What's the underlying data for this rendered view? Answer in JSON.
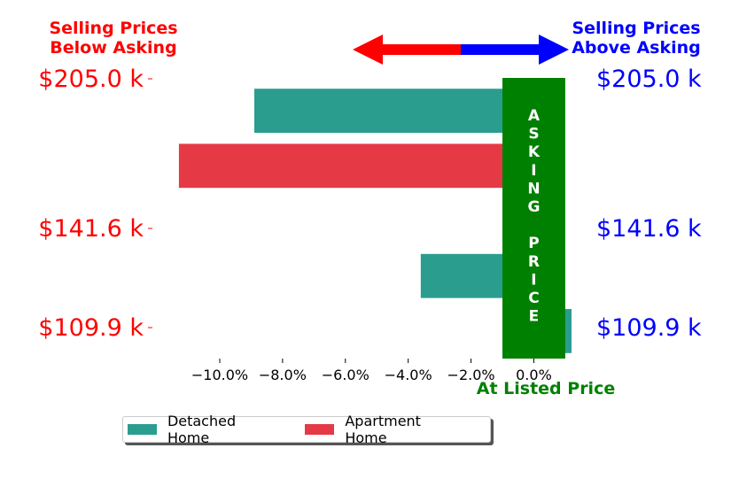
{
  "chart_data": {
    "type": "bar",
    "orientation": "horizontal",
    "series": [
      {
        "name": "Detached Home",
        "color": "#2a9d8f"
      },
      {
        "name": "Apartment Home",
        "color": "#e63946"
      }
    ],
    "bars": [
      {
        "series": "Detached Home",
        "value": -8.9
      },
      {
        "series": "Apartment Home",
        "value": -11.3
      },
      {
        "series": "Detached Home",
        "value": -1.0
      },
      {
        "series": "Detached Home",
        "value": -3.6
      },
      {
        "series": "Detached Home",
        "value": 1.2
      }
    ],
    "xlim": [
      -12.2,
      1.2
    ],
    "xticks": [
      -10,
      -8,
      -6,
      -4,
      -2,
      0
    ],
    "xtick_labels": [
      "−10.0%",
      "−8.0%",
      "−6.0%",
      "−4.0%",
      "−2.0%",
      "0.0%"
    ],
    "y_labels": [
      "$205.0 k",
      "$141.6 k",
      "$109.9 k"
    ],
    "left_color": "#ff0000",
    "right_color": "#0000ff",
    "asking_band": {
      "text": "ASKING PRICE",
      "letters": [
        "A",
        "S",
        "K",
        "I",
        "N",
        "G",
        "",
        "P",
        "R",
        "I",
        "C",
        "E"
      ],
      "color": "#008000",
      "from": -1.0,
      "to": 1.0
    },
    "xlabel": "At Listed Price",
    "xlabel_color": "#008000",
    "annotations": {
      "below": {
        "line1": "Selling Prices",
        "line2": "Below Asking",
        "color": "#ff0000"
      },
      "above": {
        "line1": "Selling Prices",
        "line2": "Above Asking",
        "color": "#0000ff"
      }
    },
    "arrow_colors": {
      "left": "#ff0000",
      "right": "#0000ff"
    },
    "legend_placement": "lower-center"
  }
}
